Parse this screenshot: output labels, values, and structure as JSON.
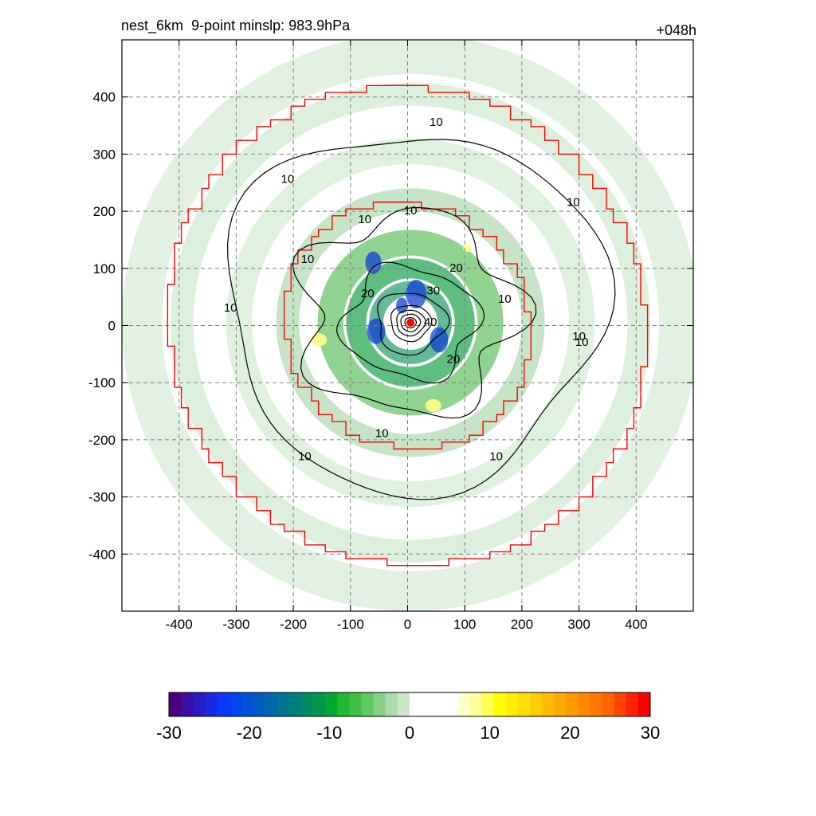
{
  "header": {
    "left_title": "nest_6km  9-point minslp: 983.9hPa",
    "right_title": "+048h"
  },
  "chart_data": {
    "type": "heatmap",
    "title": "nest_6km  9-point minslp: 983.9hPa",
    "forecast_hour": "+048h",
    "xlabel": "",
    "ylabel": "",
    "xlim": [
      -500,
      500
    ],
    "ylim": [
      -500,
      500
    ],
    "x_ticks": [
      -400,
      -300,
      -200,
      -100,
      0,
      100,
      200,
      300,
      400
    ],
    "y_ticks": [
      400,
      300,
      200,
      100,
      0,
      -100,
      -200,
      -300,
      -400
    ],
    "grid": true,
    "colorbar": {
      "min": -30,
      "max": 30,
      "ticks": [
        -30,
        -20,
        -10,
        0,
        10,
        20,
        30
      ],
      "colors": [
        "#4b0082",
        "#3a0ea0",
        "#2a1cc0",
        "#1a2ae0",
        "#0a38ff",
        "#0044ee",
        "#0050d8",
        "#005cc0",
        "#0068a8",
        "#007490",
        "#008078",
        "#008c60",
        "#009848",
        "#00a830",
        "#20b830",
        "#40c040",
        "#60c860",
        "#88d088",
        "#a8dca8",
        "#c8e8c8",
        "#ffffff",
        "#ffffff",
        "#ffffff",
        "#ffffff",
        "#ffffcc",
        "#ffff99",
        "#ffff55",
        "#ffff00",
        "#ffee00",
        "#ffdd00",
        "#ffcc00",
        "#ffbb00",
        "#ffaa00",
        "#ff9900",
        "#ff8800",
        "#ff7700",
        "#ff6600",
        "#ff4400",
        "#ff2200",
        "#ff0000"
      ]
    },
    "contour_levels": [
      10,
      20,
      30,
      40
    ],
    "contour_labels": [
      {
        "text": "10",
        "x": 50,
        "y": 355
      },
      {
        "text": "10",
        "x": -210,
        "y": 255
      },
      {
        "text": "10",
        "x": 290,
        "y": 215
      },
      {
        "text": "10",
        "x": -310,
        "y": 30
      },
      {
        "text": "10",
        "x": 300,
        "y": -20
      },
      {
        "text": "10",
        "x": -180,
        "y": -230
      },
      {
        "text": "10",
        "x": 155,
        "y": -230
      },
      {
        "text": "10",
        "x": -45,
        "y": -190
      },
      {
        "text": "10",
        "x": 5,
        "y": 200
      },
      {
        "text": "10",
        "x": -75,
        "y": 185
      },
      {
        "text": "10",
        "x": -175,
        "y": 115
      },
      {
        "text": "10",
        "x": 170,
        "y": 45
      },
      {
        "text": "10",
        "x": 305,
        "y": -30
      },
      {
        "text": "20",
        "x": -70,
        "y": 55
      },
      {
        "text": "20",
        "x": 85,
        "y": 100
      },
      {
        "text": "20",
        "x": 80,
        "y": -60
      },
      {
        "text": "30",
        "x": 45,
        "y": 60
      },
      {
        "text": "40",
        "x": 40,
        "y": 5
      }
    ],
    "storm_center": {
      "x": 5,
      "y": 5
    },
    "colors": {
      "boundary": "#ff0000",
      "contour": "#000000",
      "grid": "#808080",
      "center": "#ff0000"
    }
  }
}
